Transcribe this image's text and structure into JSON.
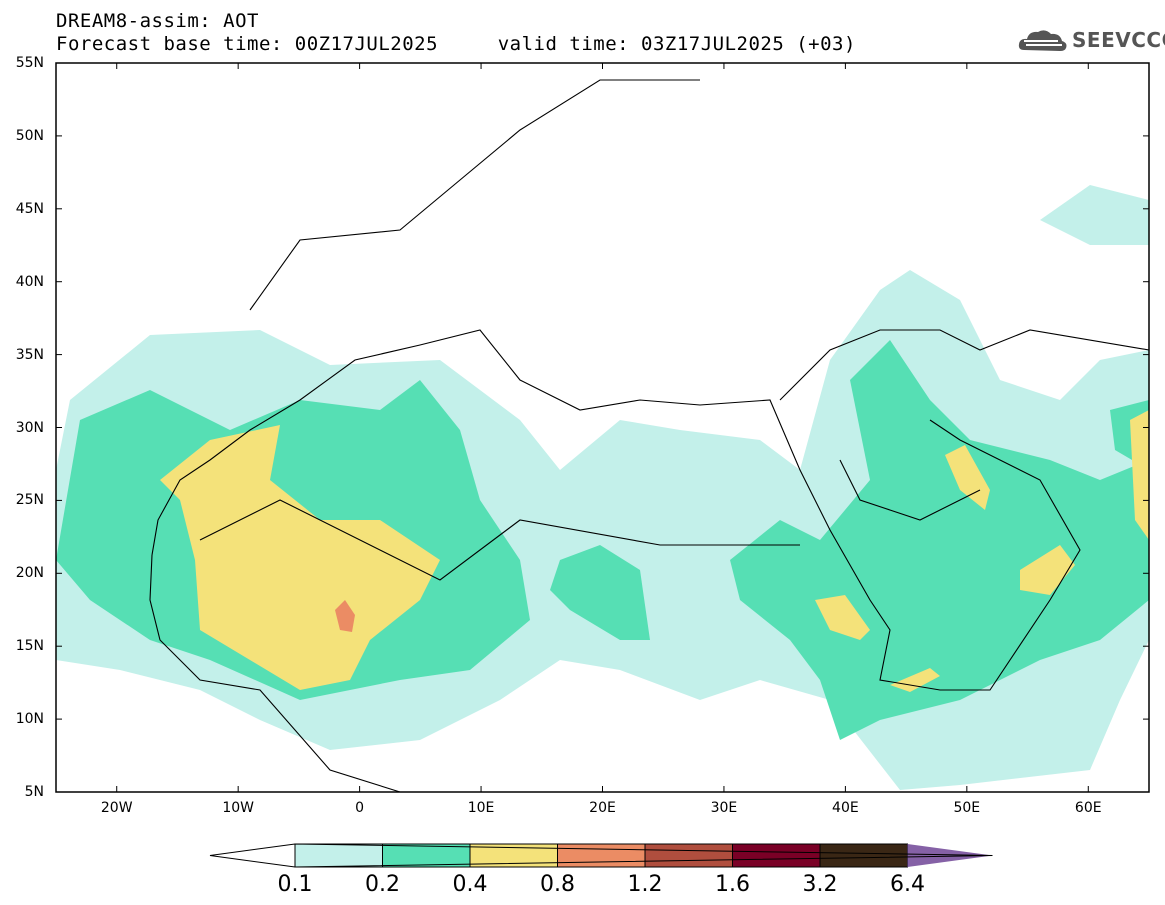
{
  "header": {
    "line1": "DREAM8-assim: AOT",
    "line2": "Forecast base time: 00Z17JUL2025     valid time: 03Z17JUL2025 (+03)",
    "logo_text": "SEEVCCC"
  },
  "map": {
    "projection": "lat-lon",
    "lon_range": [
      -25,
      65
    ],
    "lat_range": [
      5,
      55
    ],
    "lat_labels": [
      "55N",
      "50N",
      "45N",
      "40N",
      "35N",
      "30N",
      "25N",
      "20N",
      "15N",
      "10N",
      "5N"
    ],
    "lon_labels": [
      "20W",
      "10W",
      "0",
      "10E",
      "20E",
      "30E",
      "40E",
      "50E",
      "60E"
    ],
    "lon_values": [
      -20,
      -10,
      0,
      10,
      20,
      30,
      40,
      50,
      60
    ],
    "lat_values": [
      55,
      50,
      45,
      40,
      35,
      30,
      25,
      20,
      15,
      10,
      5
    ]
  },
  "colorbar": {
    "labels": [
      "0.1",
      "0.2",
      "0.4",
      "0.8",
      "1.2",
      "1.6",
      "3.2",
      "6.4"
    ],
    "colors": [
      "#c3f0ea",
      "#56dfb4",
      "#f4e27a",
      "#eb8c64",
      "#b04e3e",
      "#7a0026",
      "#3a2715",
      "#8561a6"
    ]
  },
  "colors": {
    "level1": "#c3f0ea",
    "level2": "#56dfb4",
    "level3": "#f4e27a",
    "level4": "#eb8c64"
  }
}
